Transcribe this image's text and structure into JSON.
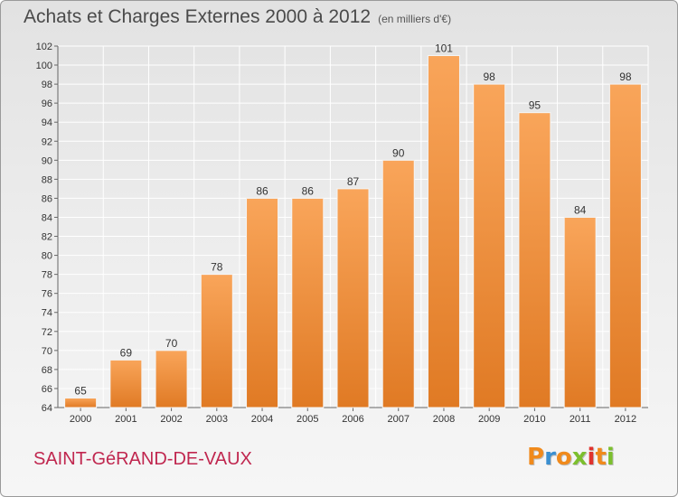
{
  "header": {
    "title": "Achats et Charges Externes 2000 à 2012",
    "subtitle": "(en milliers d'€)"
  },
  "footer": {
    "commune": "SAINT-GéRAND-DE-VAUX",
    "logo": "Proxiti"
  },
  "colors": {
    "bar_light": "#f9a55a",
    "bar_dark": "#e07a24",
    "commune": "#c0274f",
    "logo_letters": [
      "#f08a1c",
      "#3a8fd0",
      "#f08a1c",
      "#7cbf2e",
      "#e0332e",
      "#f08a1c",
      "#7cbf2e"
    ]
  },
  "chart_data": {
    "type": "bar",
    "categories": [
      "2000",
      "2001",
      "2002",
      "2003",
      "2004",
      "2005",
      "2006",
      "2007",
      "2008",
      "2009",
      "2010",
      "2011",
      "2012"
    ],
    "values": [
      65,
      69,
      70,
      78,
      86,
      86,
      87,
      90,
      101,
      98,
      95,
      84,
      98
    ],
    "ylim": [
      64,
      102
    ],
    "yticks": [
      64,
      66,
      68,
      70,
      72,
      74,
      76,
      78,
      80,
      82,
      84,
      86,
      88,
      90,
      92,
      94,
      96,
      98,
      100,
      102
    ],
    "grid": true,
    "data_labels": true
  }
}
